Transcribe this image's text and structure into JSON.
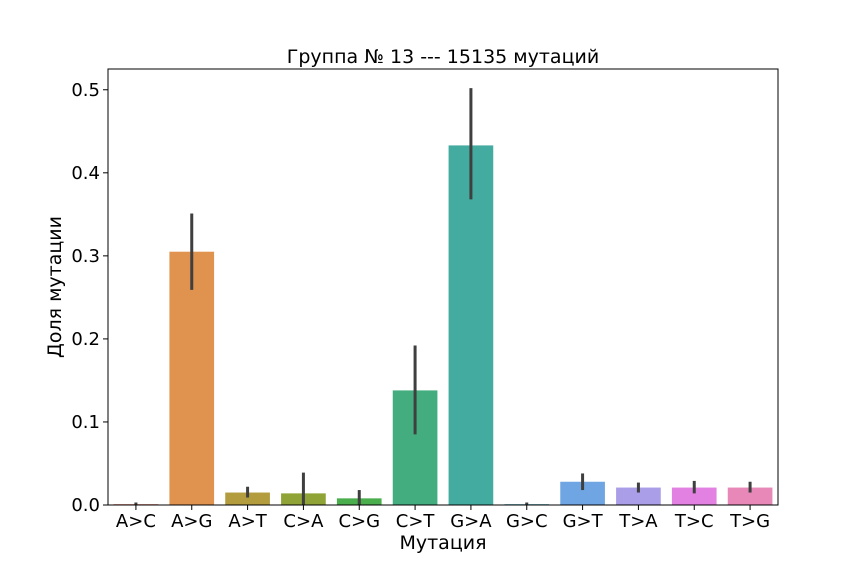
{
  "chart_data": {
    "type": "bar",
    "title": "Группа № 13 --- 15135 мутаций",
    "xlabel": "Мутация",
    "ylabel": "Доля мутации",
    "ylim": [
      0,
      0.525
    ],
    "yticks": [
      0.0,
      0.1,
      0.2,
      0.3,
      0.4,
      0.5
    ],
    "ytick_labels": [
      "0.0",
      "0.1",
      "0.2",
      "0.3",
      "0.4",
      "0.5"
    ],
    "grid": false,
    "categories": [
      "A>C",
      "A>G",
      "A>T",
      "C>A",
      "C>G",
      "C>T",
      "G>A",
      "G>C",
      "G>T",
      "T>A",
      "T>C",
      "T>G"
    ],
    "values": [
      0.001,
      0.305,
      0.015,
      0.014,
      0.008,
      0.138,
      0.433,
      0.001,
      0.028,
      0.021,
      0.021,
      0.021
    ],
    "error_low": [
      0.0,
      0.259,
      0.009,
      0.0,
      0.0,
      0.085,
      0.368,
      0.0,
      0.018,
      0.015,
      0.014,
      0.015
    ],
    "error_high": [
      0.003,
      0.351,
      0.022,
      0.039,
      0.018,
      0.192,
      0.502,
      0.003,
      0.038,
      0.027,
      0.029,
      0.028
    ],
    "colors": [
      "#e8786c",
      "#e0924f",
      "#b39c3d",
      "#8fa336",
      "#4aae4c",
      "#44ad80",
      "#43ab9f",
      "#46aab8",
      "#6ea5e2",
      "#ab9ee8",
      "#e381e3",
      "#e888b8"
    ],
    "error_color": "#3f3f3f"
  }
}
